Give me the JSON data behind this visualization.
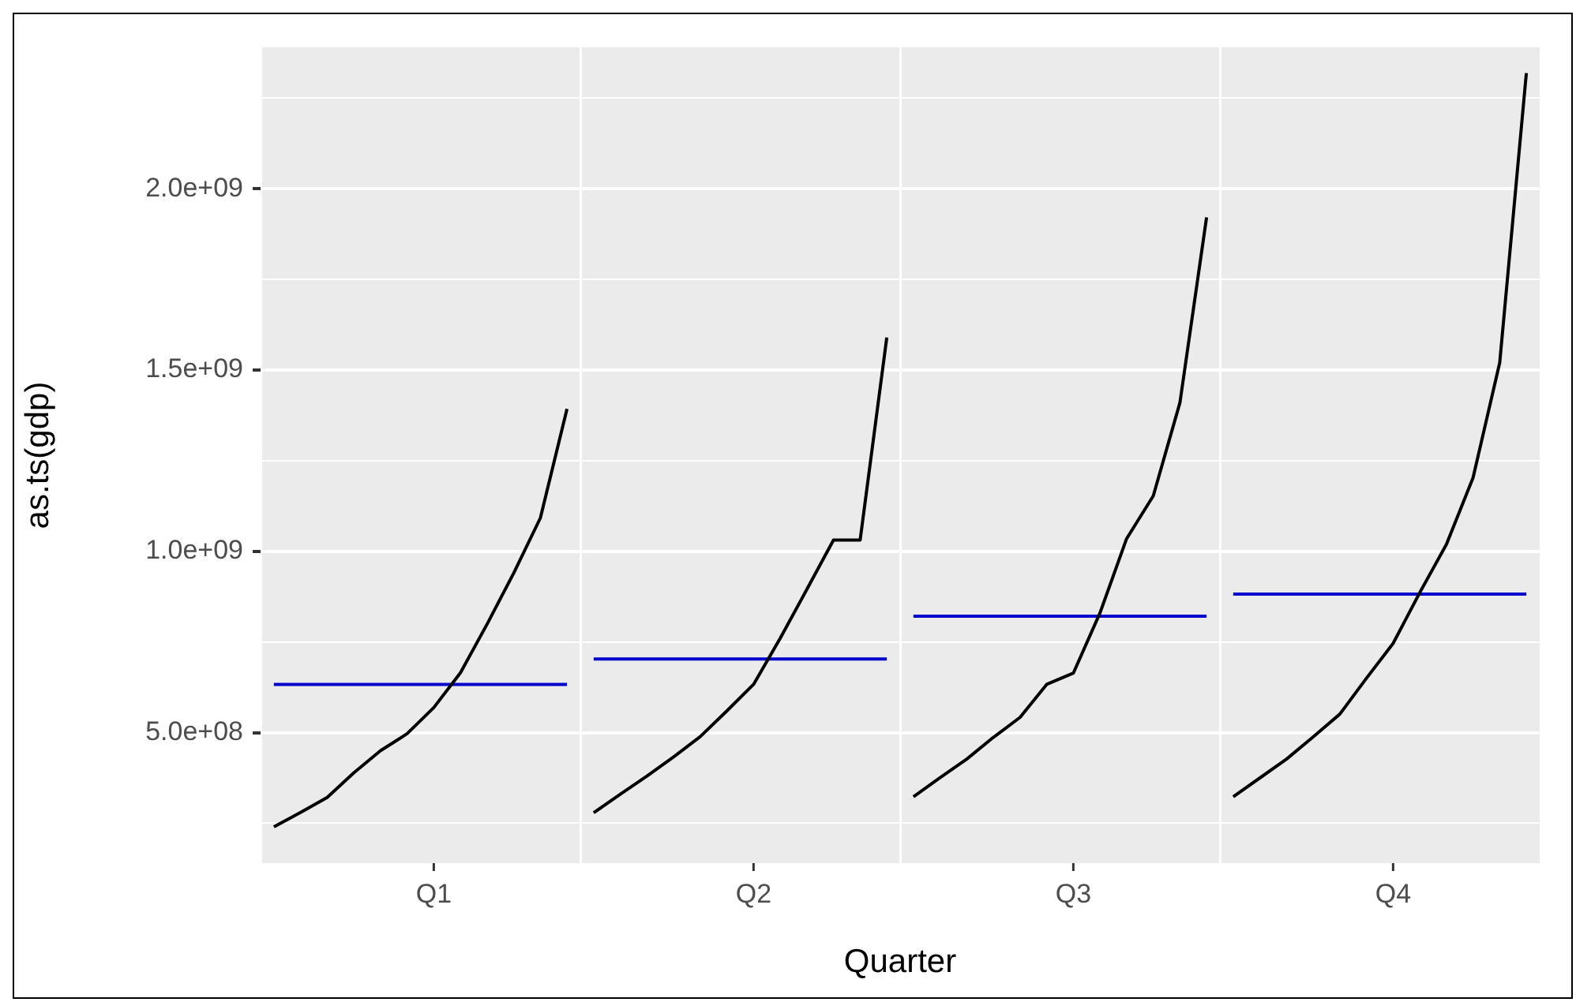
{
  "chart_data": {
    "type": "line",
    "xlabel": "Quarter",
    "ylabel": "as.ts(gdp)",
    "ylim": [
      140000000,
      2390000000
    ],
    "categories": [
      null,
      null,
      null,
      null,
      null,
      null,
      "Q1",
      null,
      null,
      null,
      null,
      null,
      null,
      null,
      null,
      null,
      null,
      null,
      "Q2",
      null,
      null,
      null,
      null,
      null,
      null,
      null,
      null,
      null,
      null,
      null,
      "Q3",
      null,
      null,
      null,
      null,
      null,
      null,
      null,
      null,
      null,
      null,
      null,
      "Q4",
      null,
      null,
      null,
      null,
      null
    ],
    "yticks": [
      {
        "value": 250000000,
        "label": null
      },
      {
        "value": 500000000,
        "label": "5.0e+08"
      },
      {
        "value": 750000000,
        "label": null
      },
      {
        "value": 1000000000,
        "label": "1.0e+09"
      },
      {
        "value": 1250000000,
        "label": null
      },
      {
        "value": 1500000000,
        "label": "1.5e+09"
      },
      {
        "value": 1750000000,
        "label": null
      },
      {
        "value": 2000000000,
        "label": "2.0e+09"
      },
      {
        "value": 2250000000,
        "label": null
      }
    ],
    "grid": true,
    "legend": false,
    "marker": "none",
    "line_style": "solid",
    "series": [
      {
        "color": "#000000",
        "values": [
          240000000,
          280000000,
          321000000,
          389000000,
          450000000,
          497000000,
          569000000,
          665000000,
          799000000,
          940000000,
          1092000000,
          1393000000,
          null,
          null,
          null,
          null,
          null,
          null,
          null,
          null,
          null,
          null,
          null,
          null,
          null,
          null,
          null,
          null,
          null,
          null,
          null,
          null,
          null,
          null,
          null,
          null,
          null,
          null,
          null,
          null,
          null,
          null,
          null,
          null,
          null,
          null,
          null,
          null
        ]
      },
      {
        "color": "#000000",
        "values": [
          null,
          null,
          null,
          null,
          null,
          null,
          null,
          null,
          null,
          null,
          null,
          null,
          279000000,
          330000000,
          380000000,
          433000000,
          489000000,
          560000000,
          633000000,
          760000000,
          895000000,
          1031000000,
          1031000000,
          1590000000,
          null,
          null,
          null,
          null,
          null,
          null,
          null,
          null,
          null,
          null,
          null,
          null,
          null,
          null,
          null,
          null,
          null,
          null,
          null,
          null,
          null,
          null,
          null,
          null
        ]
      },
      {
        "color": "#000000",
        "values": [
          null,
          null,
          null,
          null,
          null,
          null,
          null,
          null,
          null,
          null,
          null,
          null,
          null,
          null,
          null,
          null,
          null,
          null,
          null,
          null,
          null,
          null,
          null,
          null,
          323000000,
          376000000,
          427000000,
          487000000,
          542000000,
          633000000,
          664000000,
          830000000,
          1035000000,
          1153000000,
          1410000000,
          1921000000,
          null,
          null,
          null,
          null,
          null,
          null,
          null,
          null,
          null,
          null,
          null,
          null
        ]
      },
      {
        "color": "#000000",
        "values": [
          null,
          null,
          null,
          null,
          null,
          null,
          null,
          null,
          null,
          null,
          null,
          null,
          null,
          null,
          null,
          null,
          null,
          null,
          null,
          null,
          null,
          null,
          null,
          null,
          null,
          null,
          null,
          null,
          null,
          null,
          null,
          null,
          null,
          null,
          null,
          null,
          323000000,
          375000000,
          427000000,
          488000000,
          551000000,
          650000000,
          746000000,
          886000000,
          1019000000,
          1203000000,
          1520000000,
          2319000000
        ]
      },
      {
        "type": "line",
        "color": "#0000cc",
        "values": [
          633000000,
          633000000,
          633000000,
          633000000,
          633000000,
          633000000,
          633000000,
          633000000,
          633000000,
          633000000,
          633000000,
          633000000,
          null,
          null,
          null,
          null,
          null,
          null,
          null,
          null,
          null,
          null,
          null,
          null,
          null,
          null,
          null,
          null,
          null,
          null,
          null,
          null,
          null,
          null,
          null,
          null,
          null,
          null,
          null,
          null,
          null,
          null,
          null,
          null,
          null,
          null,
          null,
          null
        ]
      },
      {
        "type": "line",
        "color": "#0000cc",
        "values": [
          null,
          null,
          null,
          null,
          null,
          null,
          null,
          null,
          null,
          null,
          null,
          null,
          703000000,
          703000000,
          703000000,
          703000000,
          703000000,
          703000000,
          703000000,
          703000000,
          703000000,
          703000000,
          703000000,
          703000000,
          null,
          null,
          null,
          null,
          null,
          null,
          null,
          null,
          null,
          null,
          null,
          null,
          null,
          null,
          null,
          null,
          null,
          null,
          null,
          null,
          null,
          null,
          null,
          null
        ]
      },
      {
        "type": "line",
        "color": "#0000cc",
        "values": [
          null,
          null,
          null,
          null,
          null,
          null,
          null,
          null,
          null,
          null,
          null,
          null,
          null,
          null,
          null,
          null,
          null,
          null,
          null,
          null,
          null,
          null,
          null,
          null,
          821000000,
          821000000,
          821000000,
          821000000,
          821000000,
          821000000,
          821000000,
          821000000,
          821000000,
          821000000,
          821000000,
          821000000,
          null,
          null,
          null,
          null,
          null,
          null,
          null,
          null,
          null,
          null,
          null,
          null
        ]
      },
      {
        "type": "line",
        "color": "#0000cc",
        "values": [
          null,
          null,
          null,
          null,
          null,
          null,
          null,
          null,
          null,
          null,
          null,
          null,
          null,
          null,
          null,
          null,
          null,
          null,
          null,
          null,
          null,
          null,
          null,
          null,
          null,
          null,
          null,
          null,
          null,
          null,
          null,
          null,
          null,
          null,
          null,
          null,
          882000000,
          882000000,
          882000000,
          882000000,
          882000000,
          882000000,
          882000000,
          882000000,
          882000000,
          882000000,
          882000000,
          882000000
        ]
      }
    ]
  }
}
